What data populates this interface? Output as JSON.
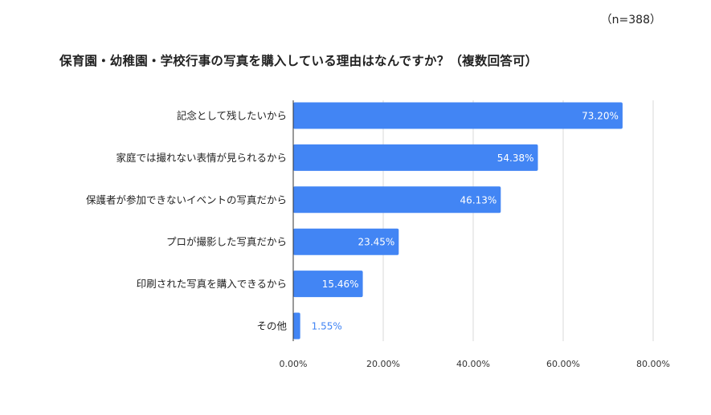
{
  "chart_data": {
    "type": "bar",
    "orientation": "horizontal",
    "title": "保育園・幼稚園・学校行事の写真を購入している理由はなんですか？（複数回答可）",
    "sample_note": "（n=388）",
    "categories": [
      "記念として残したいから",
      "家庭では撮れない表情が見られるから",
      "保護者が参加できないイベントの写真だから",
      "プロが撮影した写真だから",
      "印刷された写真を購入できるから",
      "その他"
    ],
    "values": [
      73.2,
      54.38,
      46.13,
      23.45,
      15.46,
      1.55
    ],
    "data_labels": [
      "73.20%",
      "54.38%",
      "46.13%",
      "23.45%",
      "15.46%",
      "1.55%"
    ],
    "xlim": [
      0,
      80
    ],
    "x_ticks": [
      0,
      20,
      40,
      60,
      80
    ],
    "x_tick_labels": [
      "0.00%",
      "20.00%",
      "40.00%",
      "60.00%",
      "80.00%"
    ],
    "xlabel": "",
    "ylabel": "",
    "grid": true,
    "bar_color": "#4285f4"
  }
}
